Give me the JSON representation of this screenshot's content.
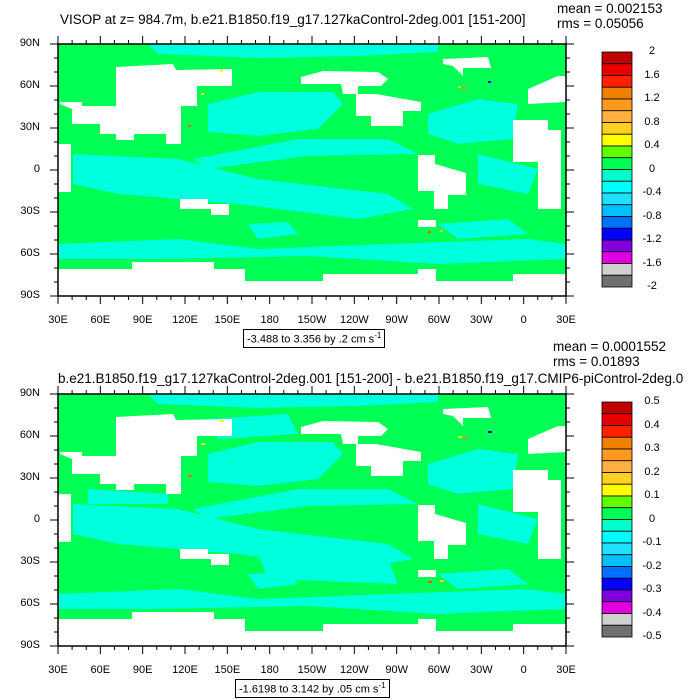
{
  "colors": {
    "green": "#00ff55",
    "cyan": "#00ffdd"
  },
  "panels": [
    {
      "title": "VISOP at z= 984.7m, b.e21.B1850.f19_g17.127kaControl-2deg.001 [151-200]",
      "mean": "mean = 0.002153",
      "rms": "rms = 0.05056",
      "info": "-3.488 to 3.356 by .2 cm s",
      "info_sup": "-1",
      "lat_labels": [
        "90N",
        "60N",
        "30N",
        "0",
        "30S",
        "60S",
        "90S"
      ],
      "lon_labels": [
        "30E",
        "60E",
        "90E",
        "120E",
        "150E",
        "180",
        "150W",
        "120W",
        "90W",
        "60W",
        "30W",
        "0",
        "30E"
      ],
      "cbar_labels": [
        "2",
        "1.6",
        "1.2",
        "0.8",
        "0.4",
        "0",
        "-0.4",
        "-0.8",
        "-1.2",
        "-1.6",
        "-2"
      ]
    },
    {
      "title": "b.e21.B1850.f19_g17.127kaControl-2deg.001 [151-200] - b.e21.B1850.f19_g17.CMIP6-piControl-2deg.0",
      "mean": "mean = 0.0001552",
      "rms": "rms = 0.01893",
      "info": "-1.6198 to 3.142 by .05 cm s",
      "info_sup": "-1",
      "lat_labels": [
        "90N",
        "60N",
        "30N",
        "0",
        "30S",
        "60S",
        "90S"
      ],
      "lon_labels": [
        "30E",
        "60E",
        "90E",
        "120E",
        "150E",
        "180",
        "150W",
        "120W",
        "90W",
        "60W",
        "30W",
        "0",
        "30E"
      ],
      "cbar_labels": [
        "0.5",
        "0.4",
        "0.3",
        "0.2",
        "0.1",
        "0",
        "-0.1",
        "-0.2",
        "-0.3",
        "-0.4",
        "-0.5"
      ]
    }
  ],
  "cbar_colors": [
    "#c00000",
    "#e80000",
    "#ff2000",
    "#f08000",
    "#ff9a20",
    "#ffb040",
    "#ffd020",
    "#ffff00",
    "#60ff00",
    "#00ff55",
    "#00ffcc",
    "#00ffff",
    "#20e0ff",
    "#00c0ff",
    "#0070ff",
    "#0000ff",
    "#8000e0",
    "#e000e0",
    "#d0d0d0",
    "#707070"
  ]
}
